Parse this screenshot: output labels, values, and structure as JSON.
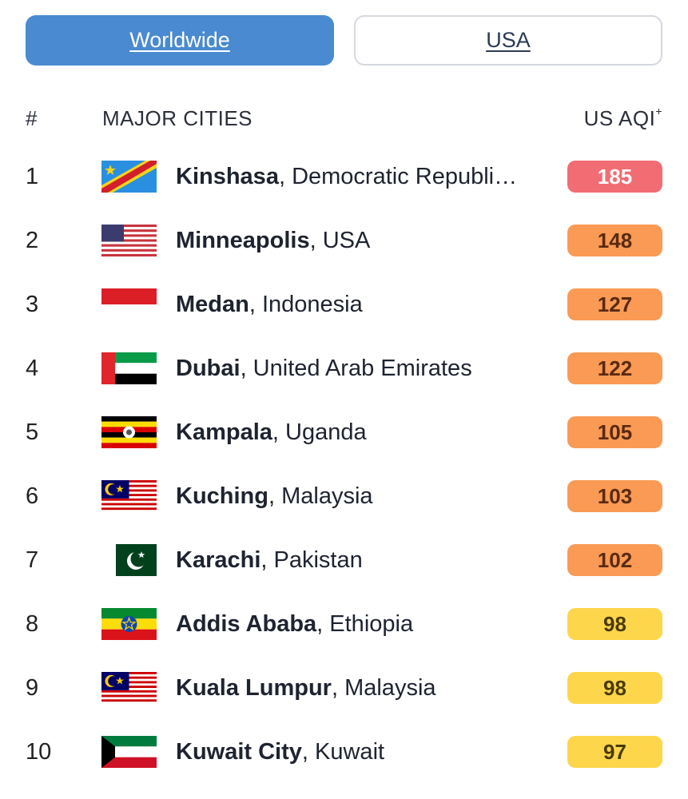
{
  "tabs": {
    "worldwide": "Worldwide",
    "usa": "USA"
  },
  "header": {
    "rank": "#",
    "cities": "MAJOR CITIES",
    "aqi": "US AQI",
    "aqi_sup": "+"
  },
  "colors": {
    "red": "#f26c73",
    "orange": "#fa9a54",
    "yellow": "#fdd64b",
    "tab_active": "#4a8ad0"
  },
  "rows": [
    {
      "rank": "1",
      "city": "Kinshasa",
      "country": ", Democratic Republi…",
      "aqi": "185",
      "level": "red",
      "flag": "cd-flag-icon"
    },
    {
      "rank": "2",
      "city": "Minneapolis",
      "country": ", USA",
      "aqi": "148",
      "level": "orange",
      "flag": "us-flag-icon"
    },
    {
      "rank": "3",
      "city": "Medan",
      "country": ", Indonesia",
      "aqi": "127",
      "level": "orange",
      "flag": "id-flag-icon"
    },
    {
      "rank": "4",
      "city": "Dubai",
      "country": ", United Arab Emirates",
      "aqi": "122",
      "level": "orange",
      "flag": "ae-flag-icon"
    },
    {
      "rank": "5",
      "city": "Kampala",
      "country": ", Uganda",
      "aqi": "105",
      "level": "orange",
      "flag": "ug-flag-icon"
    },
    {
      "rank": "6",
      "city": "Kuching",
      "country": ", Malaysia",
      "aqi": "103",
      "level": "orange",
      "flag": "my-flag-icon"
    },
    {
      "rank": "7",
      "city": "Karachi",
      "country": ", Pakistan",
      "aqi": "102",
      "level": "orange",
      "flag": "pk-flag-icon"
    },
    {
      "rank": "8",
      "city": "Addis Ababa",
      "country": ", Ethiopia",
      "aqi": "98",
      "level": "yellow",
      "flag": "et-flag-icon"
    },
    {
      "rank": "9",
      "city": "Kuala Lumpur",
      "country": ", Malaysia",
      "aqi": "98",
      "level": "yellow",
      "flag": "my-flag-icon"
    },
    {
      "rank": "10",
      "city": "Kuwait City",
      "country": ", Kuwait",
      "aqi": "97",
      "level": "yellow",
      "flag": "kw-flag-icon"
    }
  ]
}
